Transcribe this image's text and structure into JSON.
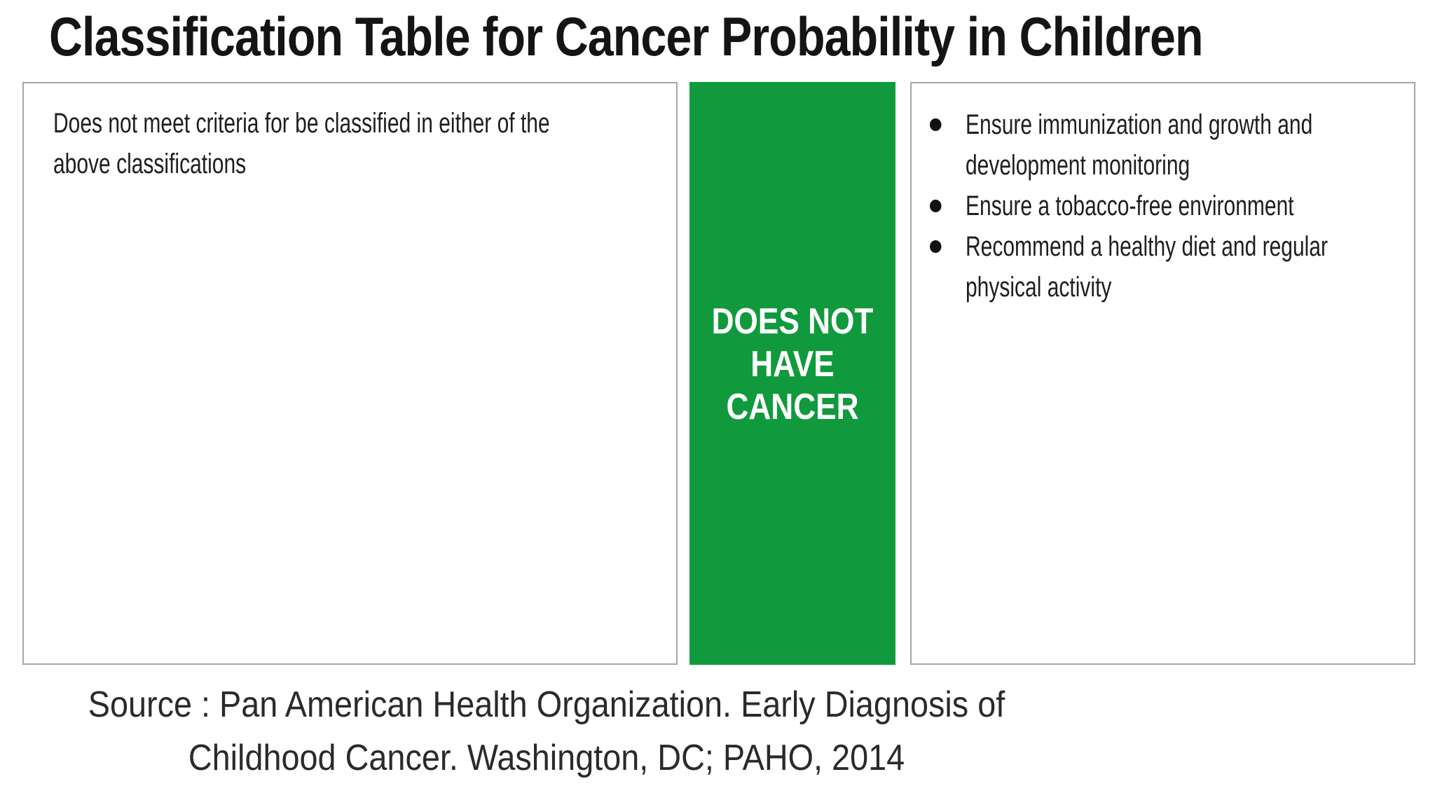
{
  "title": "Classification Table for Cancer Probability in Children",
  "criteria": {
    "text": "Does not meet criteria for be classified in either of the above classifications"
  },
  "classification": {
    "label_line1": "DOES NOT",
    "label_line2": "HAVE",
    "label_line3": "CANCER",
    "color": "#119a3d"
  },
  "actions": {
    "items": [
      "Ensure immunization and growth and development monitoring",
      "Ensure a tobacco-free environment",
      "Recommend a healthy diet and regular physical activity"
    ]
  },
  "source": {
    "line1": "Source : Pan American Health Organization. Early Diagnosis of",
    "line2": "Childhood Cancer. Washington, DC; PAHO, 2014"
  }
}
